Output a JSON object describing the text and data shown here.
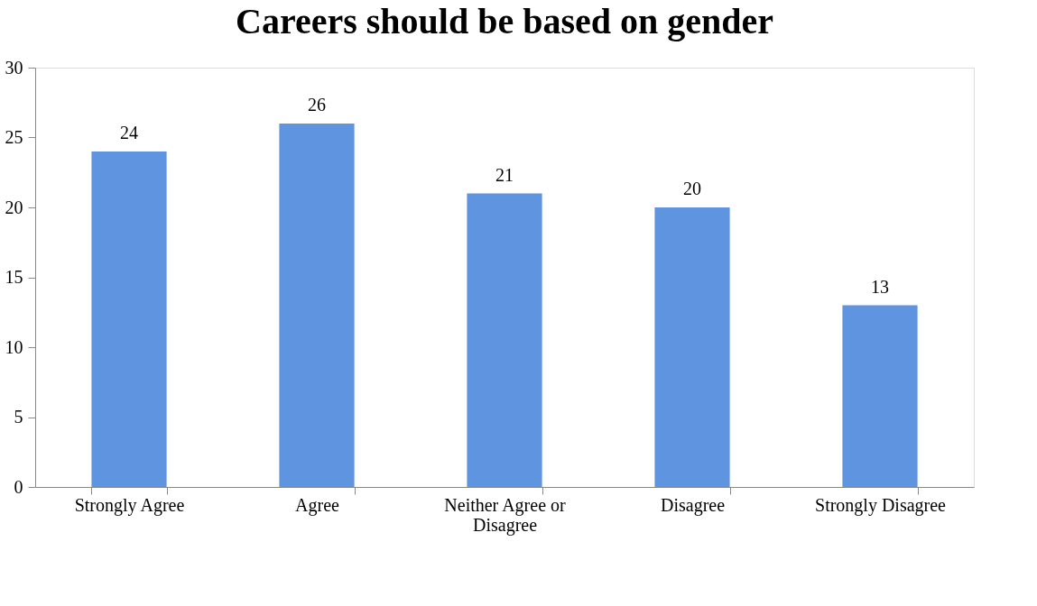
{
  "chart_data": {
    "type": "bar",
    "title": "Careers should be based on gender",
    "categories": [
      "Strongly Agree",
      "Agree",
      "Neither Agree or Disagree",
      "Disagree",
      "Strongly Disagree"
    ],
    "values": [
      24,
      26,
      21,
      20,
      13
    ],
    "color": "#5f95e0",
    "ylim": [
      0,
      30
    ],
    "yticks": [
      0,
      5,
      10,
      15,
      20,
      25,
      30
    ],
    "grid": false,
    "data_labels": true
  }
}
